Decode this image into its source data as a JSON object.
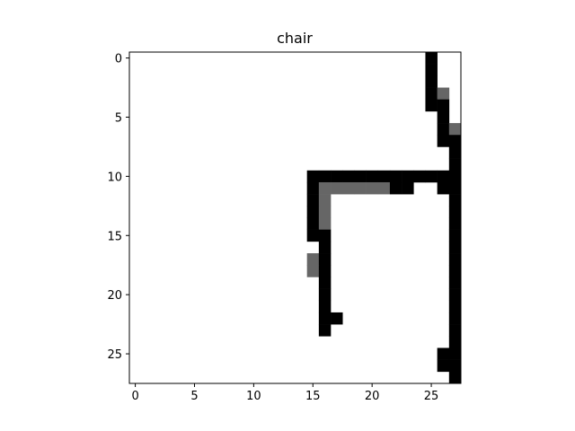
{
  "chart_data": {
    "type": "heatmap",
    "title": "chair",
    "xlabel": "",
    "ylabel": "",
    "rows": 28,
    "cols": 28,
    "xlim": [
      -0.5,
      27.5
    ],
    "ylim": [
      27.5,
      -0.5
    ],
    "x_ticks": [
      0,
      5,
      10,
      15,
      20,
      25
    ],
    "y_ticks": [
      0,
      5,
      10,
      15,
      20,
      25
    ],
    "colormap": "gray_r",
    "grid": false,
    "colors": {
      "full": "#000000",
      "partial": "#666666",
      "empty": "#ffffff"
    },
    "pixels": [
      {
        "r": 0,
        "c": 25,
        "v": 1
      },
      {
        "r": 1,
        "c": 25,
        "v": 1
      },
      {
        "r": 2,
        "c": 25,
        "v": 1
      },
      {
        "r": 3,
        "c": 25,
        "v": 1
      },
      {
        "r": 3,
        "c": 26,
        "v": 0.6
      },
      {
        "r": 4,
        "c": 25,
        "v": 1
      },
      {
        "r": 4,
        "c": 26,
        "v": 1
      },
      {
        "r": 5,
        "c": 26,
        "v": 1
      },
      {
        "r": 6,
        "c": 26,
        "v": 1
      },
      {
        "r": 6,
        "c": 27,
        "v": 0.6
      },
      {
        "r": 7,
        "c": 26,
        "v": 1
      },
      {
        "r": 7,
        "c": 27,
        "v": 1
      },
      {
        "r": 8,
        "c": 27,
        "v": 1
      },
      {
        "r": 9,
        "c": 27,
        "v": 1
      },
      {
        "r": 10,
        "c": 15,
        "v": 1
      },
      {
        "r": 10,
        "c": 16,
        "v": 1
      },
      {
        "r": 10,
        "c": 17,
        "v": 1
      },
      {
        "r": 10,
        "c": 18,
        "v": 1
      },
      {
        "r": 10,
        "c": 19,
        "v": 1
      },
      {
        "r": 10,
        "c": 20,
        "v": 1
      },
      {
        "r": 10,
        "c": 21,
        "v": 1
      },
      {
        "r": 10,
        "c": 22,
        "v": 1
      },
      {
        "r": 10,
        "c": 23,
        "v": 1
      },
      {
        "r": 10,
        "c": 24,
        "v": 1
      },
      {
        "r": 10,
        "c": 25,
        "v": 1
      },
      {
        "r": 10,
        "c": 26,
        "v": 1
      },
      {
        "r": 10,
        "c": 27,
        "v": 1
      },
      {
        "r": 11,
        "c": 15,
        "v": 1
      },
      {
        "r": 11,
        "c": 16,
        "v": 0.6
      },
      {
        "r": 11,
        "c": 17,
        "v": 0.6
      },
      {
        "r": 11,
        "c": 18,
        "v": 0.6
      },
      {
        "r": 11,
        "c": 19,
        "v": 0.6
      },
      {
        "r": 11,
        "c": 20,
        "v": 0.6
      },
      {
        "r": 11,
        "c": 21,
        "v": 0.6
      },
      {
        "r": 11,
        "c": 22,
        "v": 1
      },
      {
        "r": 11,
        "c": 23,
        "v": 1
      },
      {
        "r": 11,
        "c": 26,
        "v": 1
      },
      {
        "r": 11,
        "c": 27,
        "v": 1
      },
      {
        "r": 12,
        "c": 15,
        "v": 1
      },
      {
        "r": 12,
        "c": 16,
        "v": 0.6
      },
      {
        "r": 12,
        "c": 27,
        "v": 1
      },
      {
        "r": 13,
        "c": 15,
        "v": 1
      },
      {
        "r": 13,
        "c": 16,
        "v": 0.6
      },
      {
        "r": 13,
        "c": 27,
        "v": 1
      },
      {
        "r": 14,
        "c": 15,
        "v": 1
      },
      {
        "r": 14,
        "c": 16,
        "v": 0.6
      },
      {
        "r": 14,
        "c": 27,
        "v": 1
      },
      {
        "r": 15,
        "c": 15,
        "v": 1
      },
      {
        "r": 15,
        "c": 16,
        "v": 1
      },
      {
        "r": 15,
        "c": 27,
        "v": 1
      },
      {
        "r": 16,
        "c": 16,
        "v": 1
      },
      {
        "r": 16,
        "c": 27,
        "v": 1
      },
      {
        "r": 17,
        "c": 15,
        "v": 0.6
      },
      {
        "r": 17,
        "c": 16,
        "v": 1
      },
      {
        "r": 17,
        "c": 27,
        "v": 1
      },
      {
        "r": 18,
        "c": 15,
        "v": 0.6
      },
      {
        "r": 18,
        "c": 16,
        "v": 1
      },
      {
        "r": 18,
        "c": 27,
        "v": 1
      },
      {
        "r": 19,
        "c": 16,
        "v": 1
      },
      {
        "r": 19,
        "c": 27,
        "v": 1
      },
      {
        "r": 20,
        "c": 16,
        "v": 1
      },
      {
        "r": 20,
        "c": 27,
        "v": 1
      },
      {
        "r": 21,
        "c": 16,
        "v": 1
      },
      {
        "r": 21,
        "c": 27,
        "v": 1
      },
      {
        "r": 22,
        "c": 16,
        "v": 1
      },
      {
        "r": 22,
        "c": 17,
        "v": 1
      },
      {
        "r": 22,
        "c": 27,
        "v": 1
      },
      {
        "r": 23,
        "c": 16,
        "v": 1
      },
      {
        "r": 23,
        "c": 27,
        "v": 1
      },
      {
        "r": 24,
        "c": 27,
        "v": 1
      },
      {
        "r": 25,
        "c": 26,
        "v": 1
      },
      {
        "r": 25,
        "c": 27,
        "v": 1
      },
      {
        "r": 26,
        "c": 26,
        "v": 1
      },
      {
        "r": 26,
        "c": 27,
        "v": 1
      },
      {
        "r": 27,
        "c": 27,
        "v": 1
      }
    ]
  }
}
